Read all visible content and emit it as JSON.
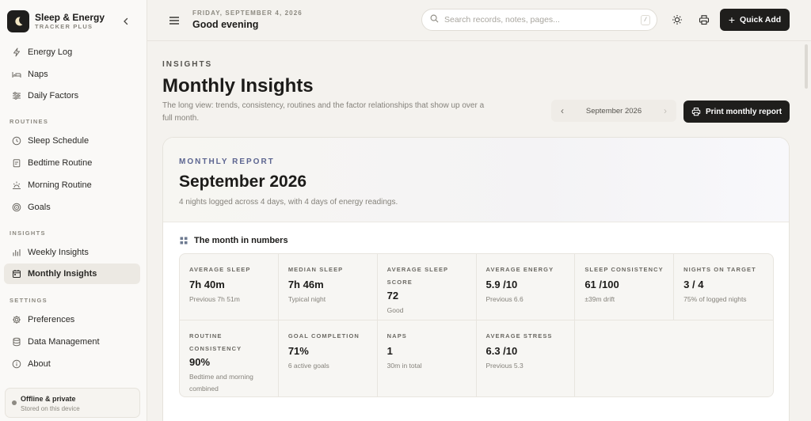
{
  "app": {
    "title": "Sleep & Energy",
    "subtitle": "TRACKER PLUS"
  },
  "sidebar": {
    "top_items": [
      {
        "label": "Energy Log",
        "icon": "bolt-icon"
      },
      {
        "label": "Naps",
        "icon": "bed-icon"
      },
      {
        "label": "Daily Factors",
        "icon": "sliders-icon"
      }
    ],
    "sections": [
      {
        "label": "ROUTINES",
        "items": [
          {
            "label": "Sleep Schedule",
            "icon": "clock-icon"
          },
          {
            "label": "Bedtime Routine",
            "icon": "clipboard-icon"
          },
          {
            "label": "Morning Routine",
            "icon": "sunrise-icon"
          },
          {
            "label": "Goals",
            "icon": "target-icon"
          }
        ]
      },
      {
        "label": "INSIGHTS",
        "items": [
          {
            "label": "Weekly Insights",
            "icon": "bar-chart-icon"
          },
          {
            "label": "Monthly Insights",
            "icon": "calendar-icon",
            "active": true
          }
        ]
      },
      {
        "label": "SETTINGS",
        "items": [
          {
            "label": "Preferences",
            "icon": "gear-icon"
          },
          {
            "label": "Data Management",
            "icon": "database-icon"
          },
          {
            "label": "About",
            "icon": "info-icon"
          }
        ]
      }
    ],
    "status": {
      "title": "Offline & private",
      "subtitle": "Stored on this device"
    }
  },
  "header": {
    "date": "FRIDAY, SEPTEMBER 4, 2026",
    "greeting": "Good evening",
    "search_placeholder": "Search records, notes, pages...",
    "search_shortcut": "/",
    "quick_add_label": "Quick Add"
  },
  "page": {
    "eyebrow": "INSIGHTS",
    "title": "Monthly Insights",
    "description": "The long view: trends, consistency, routines and the factor relationships that show up over a full month.",
    "month_selector": "September 2026",
    "print_label": "Print monthly report"
  },
  "report": {
    "eyebrow": "MONTHLY REPORT",
    "title": "September 2026",
    "subtitle": "4 nights logged across 4 days, with 4 days of energy readings.",
    "numbers_heading": "The month in numbers",
    "stats": [
      {
        "label": "AVERAGE SLEEP",
        "value": "7h 40m",
        "note": "Previous 7h 51m"
      },
      {
        "label": "MEDIAN SLEEP",
        "value": "7h 46m",
        "note": "Typical night"
      },
      {
        "label": "AVERAGE SLEEP SCORE",
        "value": "72",
        "note": "Good"
      },
      {
        "label": "AVERAGE ENERGY",
        "value": "5.9 /10",
        "note": "Previous 6.6"
      },
      {
        "label": "SLEEP CONSISTENCY",
        "value": "61 /100",
        "note": "±39m drift"
      },
      {
        "label": "NIGHTS ON TARGET",
        "value": "3 / 4",
        "note": "75% of logged nights"
      },
      {
        "label": "ROUTINE CONSISTENCY",
        "value": "90%",
        "note": "Bedtime and morning combined"
      },
      {
        "label": "GOAL COMPLETION",
        "value": "71%",
        "note": "6 active goals"
      },
      {
        "label": "NAPS",
        "value": "1",
        "note": "30m in total"
      },
      {
        "label": "AVERAGE STRESS",
        "value": "6.3 /10",
        "note": "Previous 5.3"
      }
    ]
  }
}
